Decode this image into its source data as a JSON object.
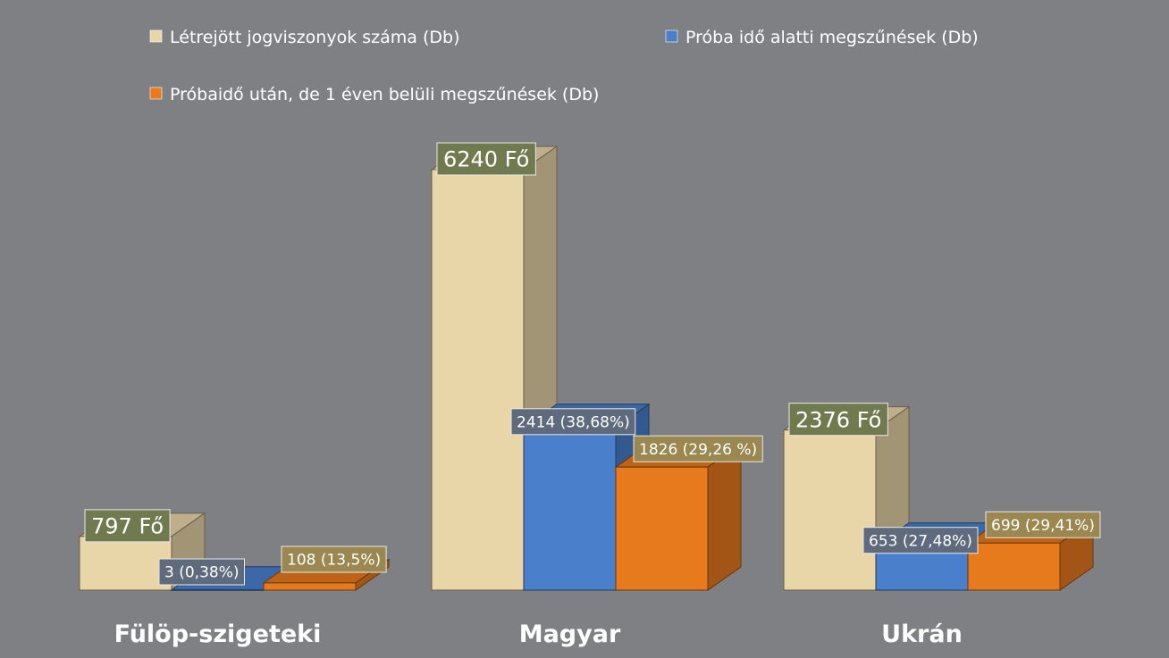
{
  "chart_data": {
    "type": "bar",
    "categories": [
      "Fülöp-szigeteki",
      "Magyar",
      "Ukrán"
    ],
    "series": [
      {
        "name": "Létrejött jogviszonyok száma (Db)",
        "values": [
          797,
          6240,
          2376
        ],
        "labels": [
          "797 Fő",
          "6240 Fő",
          "2376 Fő"
        ],
        "color": "#e8d5a8"
      },
      {
        "name": "Próba idő alatti megszűnések (Db)",
        "values": [
          3,
          2414,
          653
        ],
        "labels": [
          "3 (0,38%)",
          "2414 (38,68%)",
          "653 (27,48%)"
        ],
        "color": "#4a7fcc"
      },
      {
        "name": "Próbaidő után, de 1 éven belüli megszűnések (Db)",
        "values": [
          108,
          1826,
          699
        ],
        "labels": [
          "108 (13,5%)",
          "1826 (29,26 %)",
          "699 (29,41%)"
        ],
        "color": "#e87a1e"
      }
    ],
    "ylim": [
      0,
      6240
    ],
    "grid": false,
    "legend_position": "top",
    "background": "#7f8084"
  }
}
